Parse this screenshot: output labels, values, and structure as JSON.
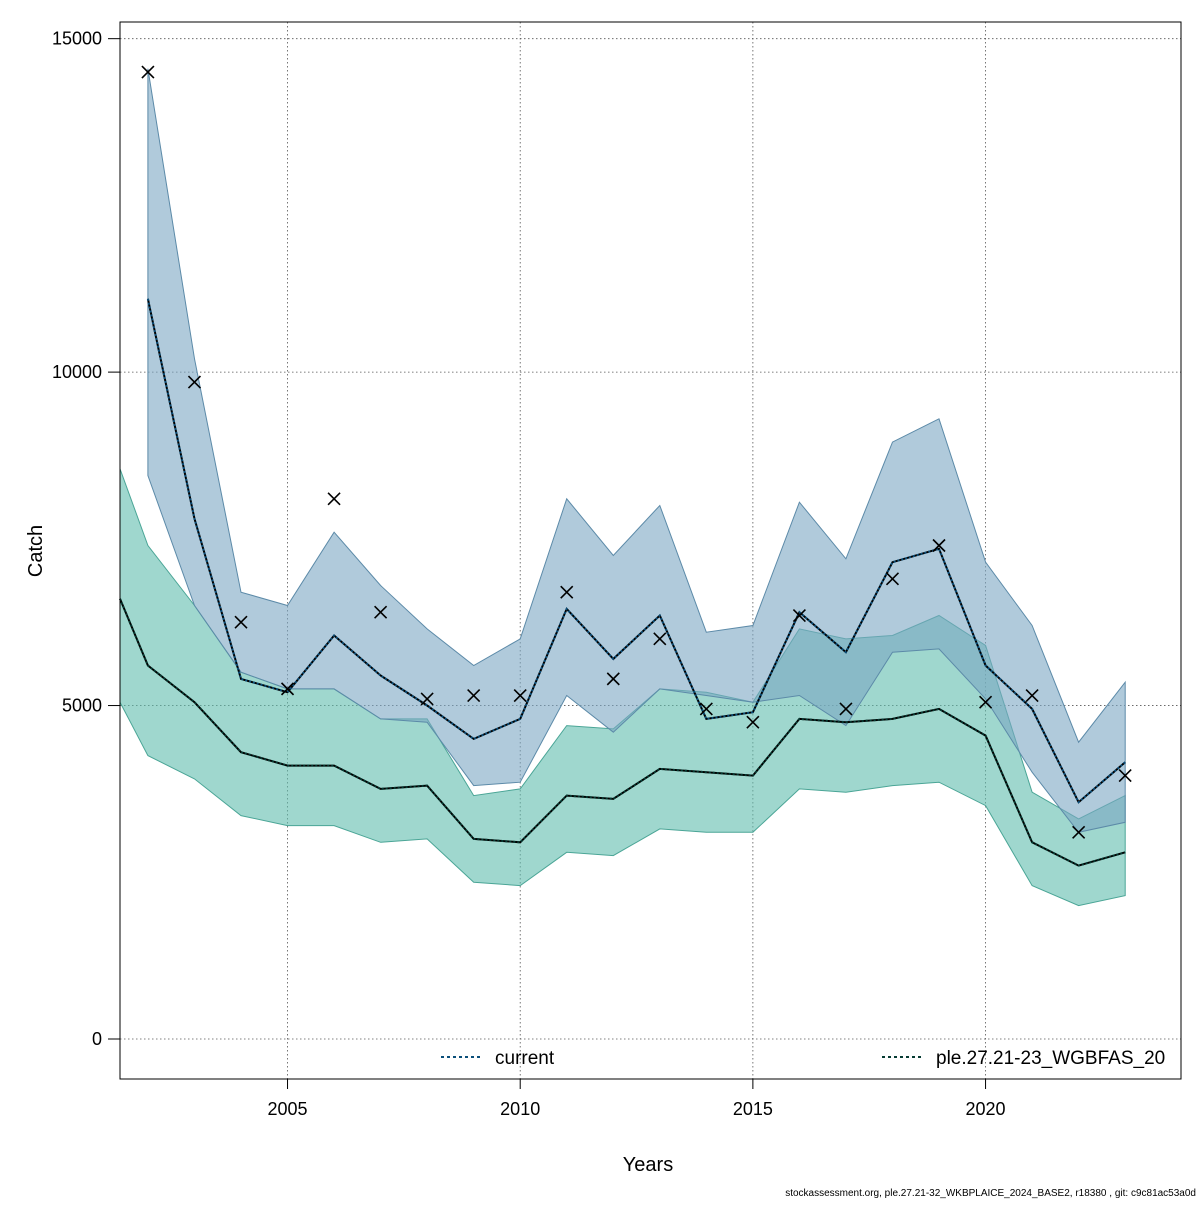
{
  "chart_data": {
    "type": "line",
    "xlabel": "Years",
    "ylabel": "Catch",
    "xlim": [
      2001.4,
      2024.2
    ],
    "ylim": [
      -600,
      15250
    ],
    "x_ticks": [
      2005,
      2010,
      2015,
      2020
    ],
    "y_ticks": [
      0,
      5000,
      10000,
      15000
    ],
    "grid": true,
    "legend_placement": "bottom",
    "colors": {
      "current_band": "#7ba7c3",
      "current_line": "#0b4f7a",
      "ref_band": "#5fbcad",
      "ref_line": "#063b33",
      "observed_marker": "#000000"
    },
    "series": [
      {
        "name": "current",
        "x": [
          2002,
          2003,
          2004,
          2005,
          2006,
          2007,
          2008,
          2009,
          2010,
          2011,
          2012,
          2013,
          2014,
          2015,
          2016,
          2017,
          2018,
          2019,
          2020,
          2021,
          2022,
          2023
        ],
        "values": [
          11100,
          7800,
          5400,
          5200,
          6050,
          5450,
          5000,
          4500,
          4800,
          6450,
          5700,
          6350,
          4800,
          4900,
          6400,
          5800,
          7150,
          7350,
          5600,
          4950,
          3550,
          4150
        ],
        "lower": [
          8450,
          6500,
          5500,
          5250,
          5250,
          4800,
          4750,
          3800,
          3850,
          5150,
          4600,
          5250,
          5150,
          5050,
          5150,
          4700,
          5800,
          5850,
          5100,
          4000,
          3100,
          3250
        ],
        "upper": [
          14550,
          10200,
          6700,
          6500,
          7600,
          6800,
          6150,
          5600,
          6000,
          8100,
          7250,
          8000,
          6100,
          6200,
          8050,
          7200,
          8950,
          9300,
          7150,
          6200,
          4450,
          5350
        ]
      },
      {
        "name": "ple.27.21-23_WGBFAS_20",
        "x": [
          2001.4,
          2002,
          2003,
          2004,
          2005,
          2006,
          2007,
          2008,
          2009,
          2010,
          2011,
          2012,
          2013,
          2014,
          2015,
          2016,
          2017,
          2018,
          2019,
          2020,
          2021,
          2022,
          2023
        ],
        "values": [
          6600,
          5600,
          5050,
          4300,
          4100,
          4100,
          3750,
          3800,
          3000,
          2950,
          3650,
          3600,
          4050,
          4000,
          3950,
          4800,
          4750,
          4800,
          4950,
          4550,
          2950,
          2600,
          2800
        ],
        "lower": [
          5050,
          4250,
          3900,
          3350,
          3200,
          3200,
          2950,
          3000,
          2350,
          2300,
          2800,
          2750,
          3150,
          3100,
          3100,
          3750,
          3700,
          3800,
          3850,
          3500,
          2300,
          2000,
          2150
        ],
        "upper": [
          8550,
          7400,
          6500,
          5500,
          5250,
          5250,
          4800,
          4800,
          3650,
          3750,
          4700,
          4650,
          5250,
          5200,
          5050,
          6150,
          6000,
          6050,
          6350,
          5900,
          3700,
          3300,
          3650
        ]
      }
    ],
    "observed": {
      "x": [
        2002,
        2003,
        2004,
        2005,
        2006,
        2007,
        2008,
        2009,
        2010,
        2011,
        2012,
        2013,
        2014,
        2015,
        2016,
        2017,
        2018,
        2019,
        2020,
        2021,
        2022,
        2023
      ],
      "values": [
        14500,
        9850,
        6250,
        5250,
        8100,
        6400,
        5100,
        5150,
        5150,
        6700,
        5400,
        6000,
        4950,
        4750,
        6350,
        4950,
        6900,
        7400,
        5050,
        5150,
        3100,
        3950
      ]
    }
  },
  "footer": "stockassessment.org, ple.27.21-32_WKBPLAICE_2024_BASE2, r18380 , git: c9c81ac53a0d"
}
